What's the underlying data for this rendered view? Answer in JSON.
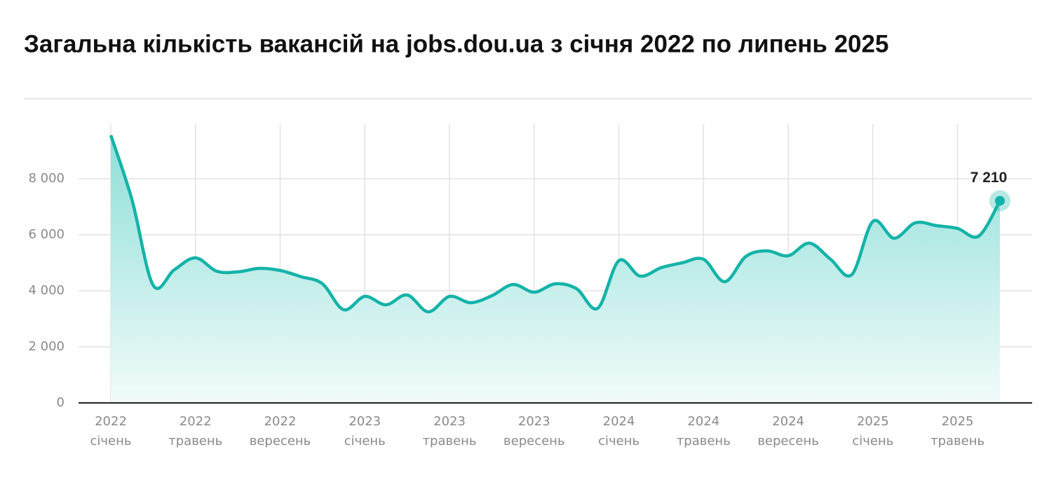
{
  "chart_data": {
    "type": "line",
    "title": "Загальна кількість вакансій на jobs.dou.ua з січня 2022 по липень 2025",
    "categories": [
      [
        "2022",
        "січень"
      ],
      null,
      null,
      null,
      [
        "2022",
        "травень"
      ],
      null,
      null,
      null,
      [
        "2022",
        "вересень"
      ],
      null,
      null,
      null,
      [
        "2023",
        "січень"
      ],
      null,
      null,
      null,
      [
        "2023",
        "травень"
      ],
      null,
      null,
      null,
      [
        "2023",
        "вересень"
      ],
      null,
      null,
      null,
      [
        "2024",
        "січень"
      ],
      null,
      null,
      null,
      [
        "2024",
        "травень"
      ],
      null,
      null,
      null,
      [
        "2024",
        "вересень"
      ],
      null,
      null,
      null,
      [
        "2025",
        "січень"
      ],
      null,
      null,
      null,
      [
        "2025",
        "травень"
      ],
      null,
      null
    ],
    "series": [
      {
        "color": "#14b3a8",
        "values": [
          9550,
          7250,
          4200,
          4750,
          5175,
          4700,
          4675,
          4800,
          4725,
          4500,
          4250,
          3325,
          3800,
          3500,
          3850,
          3250,
          3800,
          3575,
          3825,
          4225,
          3950,
          4250,
          4075,
          3375,
          5075,
          4525,
          4825,
          5000,
          5125,
          4325,
          5225,
          5425,
          5250,
          5700,
          5125,
          4575,
          6475,
          5875,
          6425,
          6325,
          6225,
          5950,
          7210
        ],
        "value_labels": [
          null,
          null,
          null,
          null,
          null,
          null,
          null,
          null,
          null,
          null,
          null,
          null,
          null,
          null,
          null,
          null,
          null,
          null,
          null,
          null,
          null,
          null,
          null,
          null,
          null,
          null,
          null,
          null,
          null,
          null,
          null,
          null,
          null,
          null,
          null,
          null,
          null,
          null,
          null,
          null,
          null,
          null,
          "7 210"
        ]
      }
    ],
    "ylim": [
      0,
      9950
    ],
    "yticks": [
      0,
      {
        "value": 2000,
        "label": "2 000"
      },
      {
        "value": 4000,
        "label": "4 000"
      },
      {
        "value": 6000,
        "label": "6 000"
      },
      {
        "value": 8000,
        "label": "8 000"
      }
    ],
    "grid": true
  }
}
